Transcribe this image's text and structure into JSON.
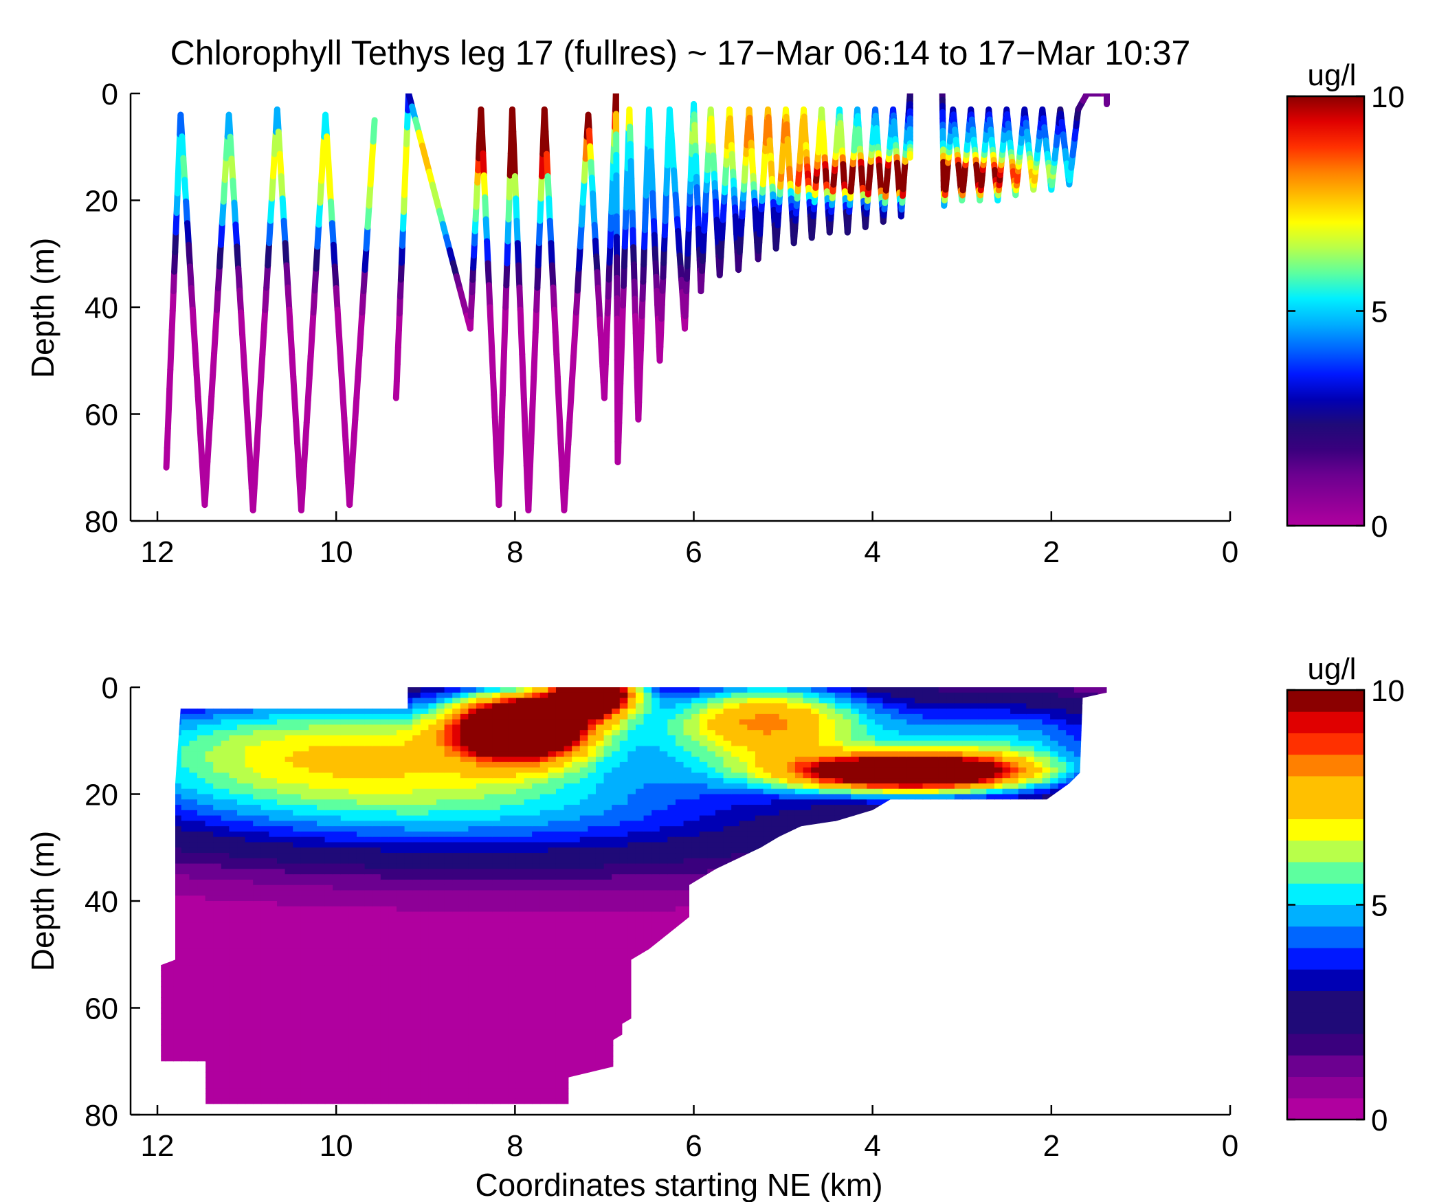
{
  "figure": {
    "title": "Chlorophyll Tethys leg 17 (fullres) ~ 17−Mar 06:14 to 17−Mar 10:37"
  },
  "colormap": [
    "#b0009f",
    "#8e0097",
    "#6c0090",
    "#3a007e",
    "#1f0a78",
    "#0000b4",
    "#0018ff",
    "#0066ff",
    "#00b0ff",
    "#00f0ff",
    "#5dff9f",
    "#b8ff4a",
    "#ffff00",
    "#ffc000",
    "#ff8000",
    "#ff3000",
    "#e00000",
    "#8b0000"
  ],
  "chart_data": [
    {
      "type": "scatter",
      "panel": "top",
      "title": "Chlorophyll Tethys leg 17 (fullres) ~ 17−Mar 06:14 to 17−Mar 10:37",
      "xlabel": "",
      "ylabel": "Depth (m)",
      "xlim": [
        12.3,
        0
      ],
      "ylim": [
        0,
        80
      ],
      "y_reversed": true,
      "xticks": [
        12,
        10,
        8,
        6,
        4,
        2,
        0
      ],
      "yticks": [
        0,
        20,
        40,
        60,
        80
      ],
      "colorbar": {
        "label": "ug/l",
        "min": 0,
        "max": 10,
        "ticks": [
          0,
          5,
          10
        ],
        "style": "continuous"
      },
      "profile_turning_points": [
        {
          "x": 11.9,
          "depth": 70
        },
        {
          "x": 11.74,
          "depth": 4
        },
        {
          "x": 11.47,
          "depth": 77
        },
        {
          "x": 11.2,
          "depth": 4
        },
        {
          "x": 10.93,
          "depth": 78
        },
        {
          "x": 10.66,
          "depth": 3
        },
        {
          "x": 10.39,
          "depth": 78
        },
        {
          "x": 10.12,
          "depth": 4
        },
        {
          "x": 9.85,
          "depth": 77
        },
        {
          "x": 9.57,
          "depth": 5
        },
        {
          "x": 9.33,
          "depth": 57
        },
        {
          "x": 9.19,
          "depth": 0
        },
        {
          "x": 8.5,
          "depth": 44
        },
        {
          "x": 8.38,
          "depth": 3
        },
        {
          "x": 8.18,
          "depth": 77
        },
        {
          "x": 8.03,
          "depth": 3
        },
        {
          "x": 7.85,
          "depth": 78
        },
        {
          "x": 7.67,
          "depth": 3
        },
        {
          "x": 7.45,
          "depth": 78
        },
        {
          "x": 7.18,
          "depth": 4
        },
        {
          "x": 7.0,
          "depth": 57
        },
        {
          "x": 6.87,
          "depth": 0
        },
        {
          "x": 6.85,
          "depth": 69
        },
        {
          "x": 6.72,
          "depth": 3
        },
        {
          "x": 6.62,
          "depth": 61
        },
        {
          "x": 6.5,
          "depth": 3
        },
        {
          "x": 6.38,
          "depth": 50
        },
        {
          "x": 6.27,
          "depth": 3
        },
        {
          "x": 6.1,
          "depth": 44
        },
        {
          "x": 6.0,
          "depth": 2
        },
        {
          "x": 5.92,
          "depth": 37
        },
        {
          "x": 5.81,
          "depth": 3
        },
        {
          "x": 5.71,
          "depth": 34
        },
        {
          "x": 5.6,
          "depth": 3
        },
        {
          "x": 5.5,
          "depth": 33
        },
        {
          "x": 5.38,
          "depth": 3
        },
        {
          "x": 5.28,
          "depth": 31
        },
        {
          "x": 5.17,
          "depth": 3
        },
        {
          "x": 5.08,
          "depth": 29
        },
        {
          "x": 4.97,
          "depth": 3
        },
        {
          "x": 4.88,
          "depth": 28
        },
        {
          "x": 4.77,
          "depth": 3
        },
        {
          "x": 4.68,
          "depth": 27
        },
        {
          "x": 4.57,
          "depth": 3
        },
        {
          "x": 4.48,
          "depth": 26
        },
        {
          "x": 4.37,
          "depth": 3
        },
        {
          "x": 4.28,
          "depth": 26
        },
        {
          "x": 4.17,
          "depth": 3
        },
        {
          "x": 4.08,
          "depth": 25
        },
        {
          "x": 3.97,
          "depth": 3
        },
        {
          "x": 3.88,
          "depth": 24
        },
        {
          "x": 3.77,
          "depth": 3
        },
        {
          "x": 3.68,
          "depth": 23
        },
        {
          "x": 3.58,
          "depth": 0
        },
        {
          "x": 3.58,
          "depth": 12
        },
        {
          "x": 3.22,
          "depth": 0
        },
        {
          "x": 3.2,
          "depth": 21
        },
        {
          "x": 3.1,
          "depth": 3
        },
        {
          "x": 3.0,
          "depth": 20
        },
        {
          "x": 2.9,
          "depth": 3
        },
        {
          "x": 2.8,
          "depth": 20
        },
        {
          "x": 2.7,
          "depth": 3
        },
        {
          "x": 2.6,
          "depth": 20
        },
        {
          "x": 2.5,
          "depth": 3
        },
        {
          "x": 2.4,
          "depth": 19
        },
        {
          "x": 2.3,
          "depth": 3
        },
        {
          "x": 2.2,
          "depth": 18
        },
        {
          "x": 2.1,
          "depth": 3
        },
        {
          "x": 2.0,
          "depth": 18
        },
        {
          "x": 1.9,
          "depth": 3
        },
        {
          "x": 1.8,
          "depth": 17
        },
        {
          "x": 1.7,
          "depth": 3
        },
        {
          "x": 1.6,
          "depth": 0
        },
        {
          "x": 1.38,
          "depth": 0
        },
        {
          "x": 1.38,
          "depth": 2
        }
      ]
    },
    {
      "type": "heatmap",
      "panel": "bottom",
      "title": "",
      "xlabel": "Coordinates starting NE (km)",
      "ylabel": "Depth (m)",
      "xlim": [
        12.3,
        0
      ],
      "ylim": [
        0,
        80
      ],
      "y_reversed": true,
      "xticks": [
        12,
        10,
        8,
        6,
        4,
        2,
        0
      ],
      "yticks": [
        0,
        20,
        40,
        60,
        80
      ],
      "colorbar": {
        "label": "ug/l",
        "min": 0,
        "max": 10,
        "ticks": [
          0,
          5,
          10
        ],
        "levels": 20,
        "style": "contour"
      },
      "data_extent_polygon": [
        [
          11.74,
          4
        ],
        [
          9.2,
          4
        ],
        [
          9.2,
          0
        ],
        [
          1.38,
          0
        ],
        [
          1.38,
          1
        ],
        [
          1.65,
          2
        ],
        [
          1.68,
          16
        ],
        [
          1.8,
          18
        ],
        [
          2.05,
          21
        ],
        [
          3.8,
          21
        ],
        [
          4.0,
          23
        ],
        [
          4.4,
          25
        ],
        [
          4.8,
          26
        ],
        [
          5.05,
          28
        ],
        [
          5.25,
          30
        ],
        [
          5.5,
          32
        ],
        [
          5.75,
          34
        ],
        [
          5.95,
          36
        ],
        [
          6.05,
          37
        ],
        [
          6.05,
          43
        ],
        [
          6.2,
          45
        ],
        [
          6.5,
          49
        ],
        [
          6.7,
          51
        ],
        [
          6.7,
          62
        ],
        [
          6.8,
          63
        ],
        [
          6.8,
          65
        ],
        [
          6.9,
          66
        ],
        [
          6.9,
          71
        ],
        [
          7.4,
          73
        ],
        [
          7.4,
          78
        ],
        [
          11.46,
          78
        ],
        [
          11.46,
          70
        ],
        [
          11.96,
          70
        ],
        [
          11.96,
          52
        ],
        [
          11.8,
          51
        ],
        [
          11.8,
          18
        ]
      ],
      "features": [
        {
          "name": "subsurface maximum",
          "x_range": [
            8.8,
            7.0
          ],
          "depth_range": [
            3,
            12
          ],
          "value": 10
        },
        {
          "name": "surface maximum",
          "x_range": [
            7.6,
            6.8
          ],
          "depth_range": [
            0,
            4
          ],
          "value": 10
        },
        {
          "name": "layer maximum",
          "x_range": [
            4.6,
            2.2
          ],
          "depth_range": [
            13,
            20
          ],
          "value": 9
        },
        {
          "name": "near-surface patch",
          "x_range": [
            6.2,
            4.4
          ],
          "depth_range": [
            0,
            12
          ],
          "value": 7
        },
        {
          "name": "deep water",
          "x_range": [
            11.9,
            6.2
          ],
          "depth_range": [
            35,
            78
          ],
          "value": 0
        }
      ]
    }
  ]
}
